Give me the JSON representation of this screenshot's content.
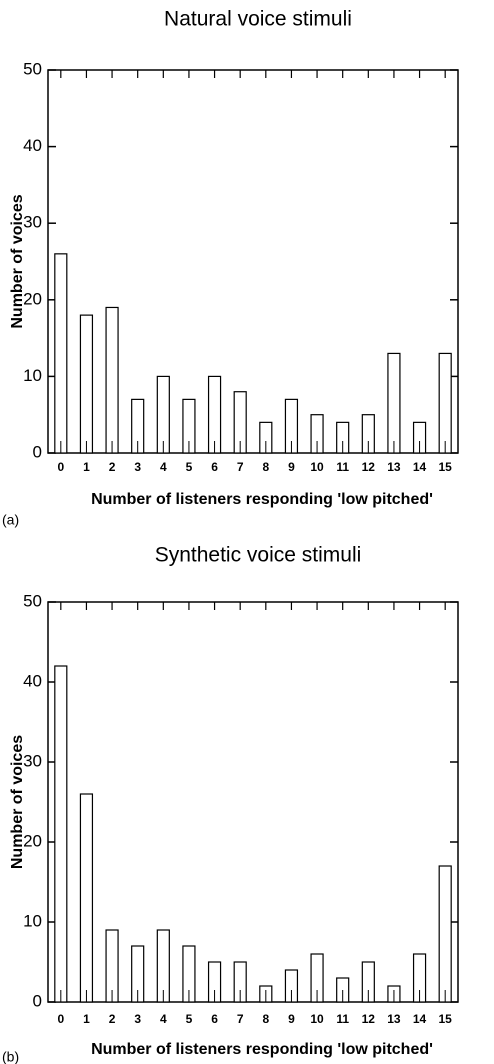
{
  "chart_data": [
    {
      "type": "bar",
      "title": "Natural voice stimuli",
      "x_label": "Number of listeners responding 'low pitched'",
      "y_label": "Number of voices",
      "panel_label": "(a)",
      "categories": [
        "0",
        "1",
        "2",
        "3",
        "4",
        "5",
        "6",
        "7",
        "8",
        "9",
        "10",
        "11",
        "12",
        "13",
        "14",
        "15"
      ],
      "values": [
        26,
        18,
        19,
        7,
        10,
        7,
        10,
        8,
        4,
        7,
        5,
        4,
        5,
        13,
        4,
        13
      ],
      "color": "#ffffff",
      "ylim": [
        0,
        50
      ],
      "yticks": [
        0,
        10,
        20,
        30,
        40,
        50
      ]
    },
    {
      "type": "bar",
      "title": "Synthetic voice stimuli",
      "x_label": "Number of listeners responding 'low pitched'",
      "y_label": "Number of voices",
      "panel_label": "(b)",
      "categories": [
        "0",
        "1",
        "2",
        "3",
        "4",
        "5",
        "6",
        "7",
        "8",
        "9",
        "10",
        "11",
        "12",
        "13",
        "14",
        "15"
      ],
      "values": [
        42,
        26,
        9,
        7,
        9,
        7,
        5,
        5,
        2,
        4,
        6,
        3,
        5,
        2,
        6,
        17
      ],
      "color": "#ffffff",
      "ylim": [
        0,
        50
      ],
      "yticks": [
        0,
        10,
        20,
        30,
        40,
        50
      ]
    }
  ]
}
